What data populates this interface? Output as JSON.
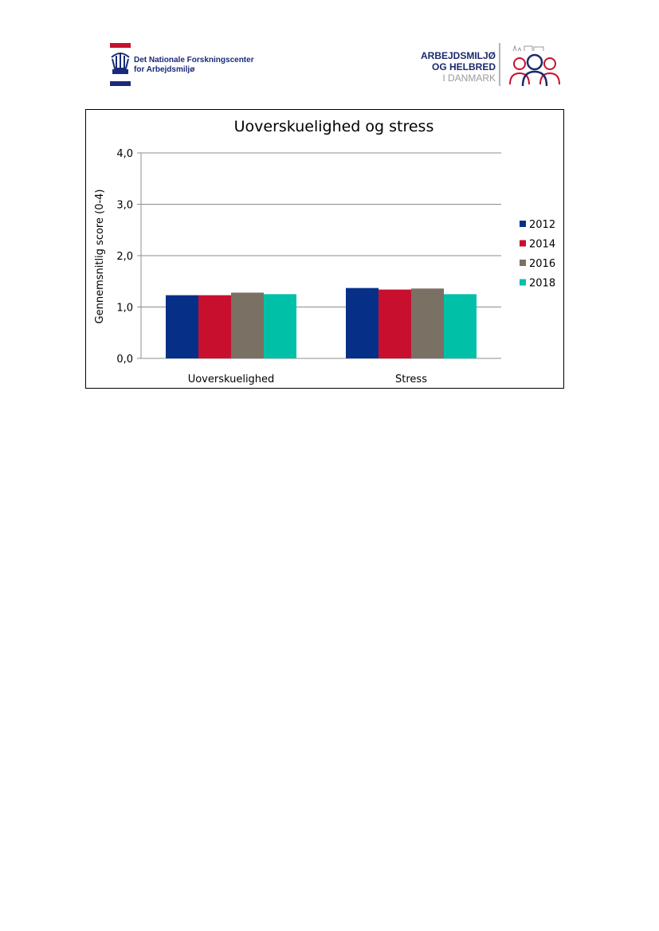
{
  "header": {
    "left_logo": {
      "line1": "Det Nationale Forskningscenter",
      "line2": "for Arbejdsmiljø",
      "colors": {
        "red": "#c8102e",
        "navy": "#1a2a7a"
      }
    },
    "right_logo": {
      "line1": "ARBEJDSMILJØ",
      "line2": "OG HELBRED",
      "line3": "I DANMARK",
      "colors": {
        "navy": "#1a2a6c",
        "gray": "#9a9a9a",
        "red": "#c8102e"
      }
    }
  },
  "chart_data": {
    "type": "bar",
    "title": "Uoverskuelighed og stress",
    "xlabel": "",
    "ylabel": "Gennemsnitlig score (0-4)",
    "categories": [
      "Uoverskuelighed",
      "Stress"
    ],
    "series": [
      {
        "name": "2012",
        "values": [
          1.23,
          1.37
        ],
        "color": "#063087"
      },
      {
        "name": "2014",
        "values": [
          1.23,
          1.34
        ],
        "color": "#c8102e"
      },
      {
        "name": "2016",
        "values": [
          1.28,
          1.36
        ],
        "color": "#7a7064"
      },
      {
        "name": "2018",
        "values": [
          1.25,
          1.25
        ],
        "color": "#00c1a8"
      }
    ],
    "ylim": [
      0,
      4
    ],
    "yticks": [
      "0,0",
      "1,0",
      "2,0",
      "3,0",
      "4,0"
    ],
    "grid": true,
    "legend": "right"
  }
}
